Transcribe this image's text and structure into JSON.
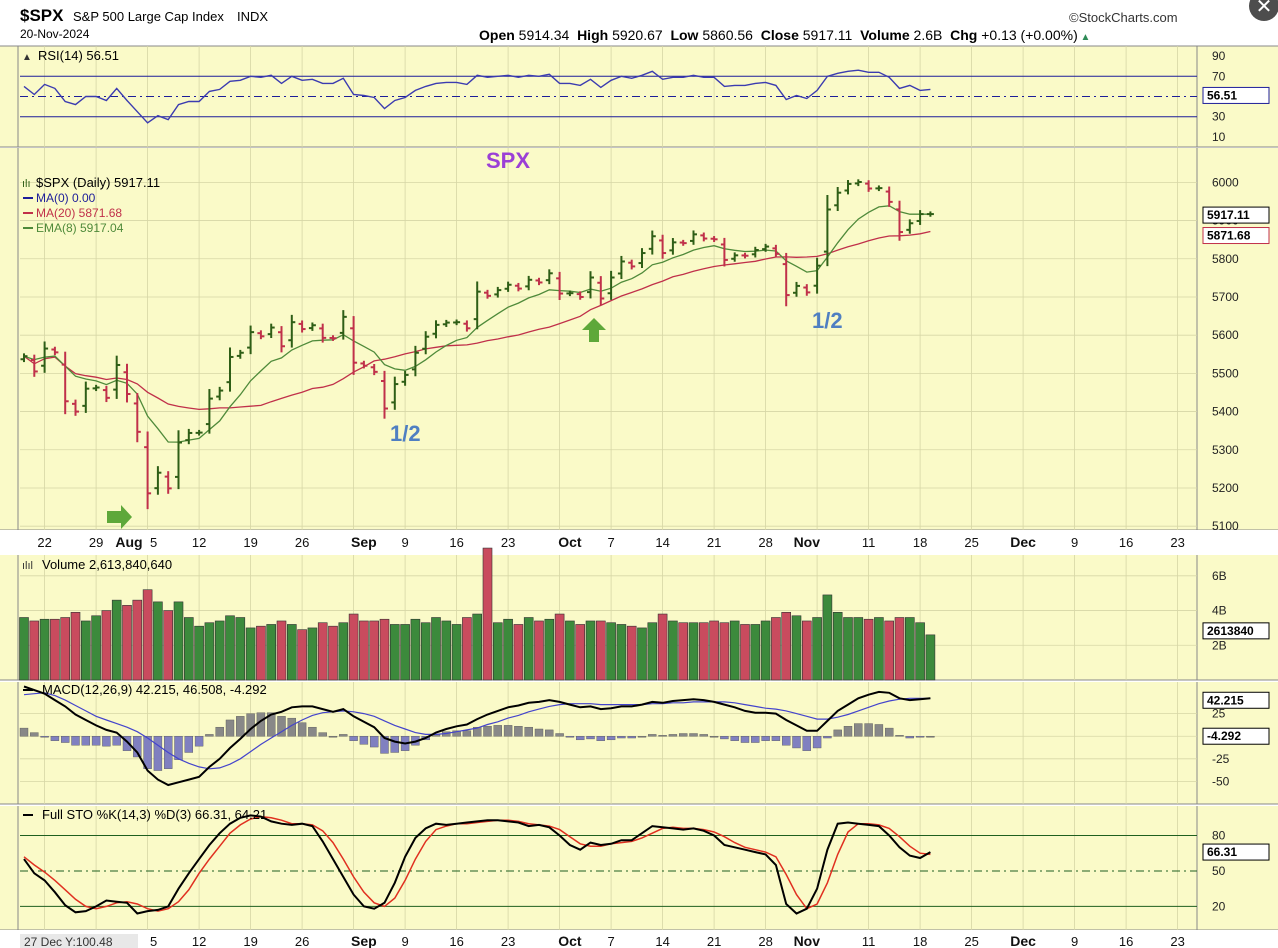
{
  "header": {
    "symbol": "$SPX",
    "name": "S&P 500 Large Cap Index",
    "exchange": "INDX",
    "date": "20-Nov-2024",
    "brand": "StockCharts.com",
    "ohlc_line": [
      {
        "label": "Open",
        "value": "5914.34"
      },
      {
        "label": "High",
        "value": "5920.67"
      },
      {
        "label": "Low",
        "value": "5860.56"
      },
      {
        "label": "Close",
        "value": "5917.11"
      },
      {
        "label": "Volume",
        "value": "2.6B"
      },
      {
        "label": "Chg",
        "value": "+0.13 (+0.00%)"
      }
    ],
    "close_icon": "close-icon"
  },
  "colors": {
    "panel_bg": "#fafac8",
    "grid": "#d6d6a6",
    "up": "#2e5e16",
    "down": "#c0304a",
    "vol_up": "#3c8a3c",
    "vol_down": "#c94b5e",
    "ma20": "#c0304a",
    "ema8": "#4f8a3a",
    "rsi": "#3b3bb0",
    "macd_signal": "#4444cc",
    "macd_hist": "#8080c0",
    "sto_k": "#000000",
    "sto_d": "#e03020",
    "annotation_purple": "#9b3fd6",
    "annotation_blue": "#4f7fc2",
    "arrow_green": "#5ea83a"
  },
  "chart_data": {
    "type": "candlestick",
    "x_axis_labels": [
      "22",
      "29",
      "Aug",
      "5",
      "12",
      "19",
      "26",
      "Sep",
      "9",
      "16",
      "23",
      "Oct",
      "7",
      "14",
      "21",
      "28",
      "Nov",
      "11",
      "18",
      "25",
      "Dec",
      "9",
      "16",
      "23"
    ],
    "bottom_axis_labels": [
      "5",
      "12",
      "19",
      "26",
      "Sep",
      "9",
      "16",
      "23",
      "Oct",
      "7",
      "14",
      "21",
      "28",
      "Nov",
      "11",
      "18",
      "25",
      "Dec",
      "9",
      "16",
      "23"
    ],
    "bottom_axis_prefix": "27 Dec Y:100.48",
    "dates": [
      "2024-07-18",
      "2024-07-19",
      "2024-07-22",
      "2024-07-23",
      "2024-07-24",
      "2024-07-25",
      "2024-07-26",
      "2024-07-29",
      "2024-07-30",
      "2024-07-31",
      "2024-08-01",
      "2024-08-02",
      "2024-08-05",
      "2024-08-06",
      "2024-08-07",
      "2024-08-08",
      "2024-08-09",
      "2024-08-12",
      "2024-08-13",
      "2024-08-14",
      "2024-08-15",
      "2024-08-16",
      "2024-08-19",
      "2024-08-20",
      "2024-08-21",
      "2024-08-22",
      "2024-08-23",
      "2024-08-26",
      "2024-08-27",
      "2024-08-28",
      "2024-08-29",
      "2024-08-30",
      "2024-09-03",
      "2024-09-04",
      "2024-09-05",
      "2024-09-06",
      "2024-09-09",
      "2024-09-10",
      "2024-09-11",
      "2024-09-12",
      "2024-09-13",
      "2024-09-16",
      "2024-09-17",
      "2024-09-18",
      "2024-09-19",
      "2024-09-20",
      "2024-09-23",
      "2024-09-24",
      "2024-09-25",
      "2024-09-26",
      "2024-09-27",
      "2024-09-30",
      "2024-10-01",
      "2024-10-02",
      "2024-10-03",
      "2024-10-04",
      "2024-10-07",
      "2024-10-08",
      "2024-10-09",
      "2024-10-10",
      "2024-10-11",
      "2024-10-14",
      "2024-10-15",
      "2024-10-16",
      "2024-10-17",
      "2024-10-18",
      "2024-10-21",
      "2024-10-22",
      "2024-10-23",
      "2024-10-24",
      "2024-10-25",
      "2024-10-28",
      "2024-10-29",
      "2024-10-30",
      "2024-10-31",
      "2024-11-01",
      "2024-11-04",
      "2024-11-05",
      "2024-11-06",
      "2024-11-07",
      "2024-11-08",
      "2024-11-11",
      "2024-11-12",
      "2024-11-13",
      "2024-11-14",
      "2024-11-15",
      "2024-11-18",
      "2024-11-19",
      "2024-11-20"
    ],
    "close": [
      5545,
      5505,
      5565,
      5555,
      5427,
      5400,
      5460,
      5463,
      5436,
      5522,
      5446,
      5347,
      5186,
      5240,
      5199,
      5319,
      5344,
      5345,
      5434,
      5455,
      5543,
      5554,
      5608,
      5597,
      5620,
      5571,
      5634,
      5616,
      5626,
      5593,
      5592,
      5648,
      5528,
      5520,
      5504,
      5408,
      5472,
      5496,
      5554,
      5596,
      5627,
      5633,
      5634,
      5618,
      5714,
      5703,
      5718,
      5732,
      5722,
      5745,
      5738,
      5762,
      5709,
      5710,
      5700,
      5751,
      5696,
      5751,
      5793,
      5780,
      5815,
      5859,
      5815,
      5843,
      5841,
      5864,
      5853,
      5851,
      5797,
      5809,
      5808,
      5823,
      5832,
      5813,
      5705,
      5729,
      5712,
      5782,
      5929,
      5973,
      5996,
      6001,
      5984,
      5985,
      5949,
      5870,
      5893,
      5917,
      5917
    ],
    "prices": {
      "ticks": [
        5100,
        5200,
        5300,
        5400,
        5500,
        5600,
        5700,
        5800,
        5900,
        6000
      ],
      "ylim": [
        5090,
        6090
      ],
      "legend": [
        "$SPX (Daily) 5917.11",
        "MA(0) 0.00",
        "MA(20) 5871.68",
        "EMA(8) 5917.04"
      ],
      "last_labels": [
        "5917.11",
        "5871.68"
      ]
    },
    "rsi": {
      "title": "RSI(14) 56.51",
      "ticks": [
        10,
        30,
        50,
        70,
        90
      ],
      "last_label": "56.51",
      "values": [
        60,
        52,
        62,
        58,
        45,
        42,
        50,
        50,
        46,
        58,
        46,
        35,
        24,
        31,
        27,
        42,
        45,
        45,
        55,
        57,
        65,
        66,
        70,
        69,
        71,
        63,
        70,
        66,
        67,
        63,
        63,
        68,
        52,
        51,
        49,
        38,
        46,
        49,
        56,
        60,
        63,
        64,
        64,
        62,
        71,
        69,
        70,
        71,
        69,
        71,
        70,
        72,
        63,
        63,
        61,
        67,
        59,
        66,
        70,
        68,
        71,
        75,
        67,
        69,
        69,
        71,
        69,
        69,
        60,
        61,
        61,
        63,
        64,
        61,
        47,
        51,
        48,
        56,
        70,
        73,
        75,
        76,
        74,
        74,
        69,
        58,
        61,
        56,
        57
      ]
    },
    "volume": {
      "title": "Volume 2,613,840,640",
      "ticks": [
        "2B",
        "4B",
        "6B"
      ],
      "last_label": "2613840",
      "values": [
        3.6,
        3.4,
        3.5,
        3.5,
        3.6,
        3.9,
        3.4,
        3.7,
        4.0,
        4.6,
        4.3,
        4.6,
        5.2,
        4.5,
        4.0,
        4.5,
        3.6,
        3.1,
        3.3,
        3.4,
        3.7,
        3.6,
        3.0,
        3.1,
        3.2,
        3.4,
        3.2,
        2.9,
        3.0,
        3.3,
        3.1,
        3.3,
        3.8,
        3.4,
        3.4,
        3.5,
        3.2,
        3.2,
        3.5,
        3.3,
        3.6,
        3.4,
        3.2,
        3.6,
        3.8,
        7.6,
        3.3,
        3.5,
        3.2,
        3.6,
        3.4,
        3.5,
        3.8,
        3.4,
        3.2,
        3.4,
        3.4,
        3.3,
        3.2,
        3.1,
        3.0,
        3.3,
        3.8,
        3.4,
        3.3,
        3.3,
        3.3,
        3.4,
        3.3,
        3.4,
        3.2,
        3.2,
        3.4,
        3.6,
        3.9,
        3.7,
        3.4,
        3.6,
        4.9,
        3.9,
        3.6,
        3.6,
        3.5,
        3.6,
        3.4,
        3.6,
        3.6,
        3.3,
        2.6
      ]
    },
    "macd": {
      "title": "MACD(12,26,9) 42.215, 46.508, -4.292",
      "ticks": [
        -50,
        -25,
        0,
        25
      ],
      "last_labels": [
        "42.215",
        "-4.292"
      ],
      "macd": [
        55,
        51,
        47,
        40,
        33,
        24,
        18,
        12,
        7,
        4,
        -6,
        -18,
        -38,
        -48,
        -54,
        -51,
        -48,
        -45,
        -34,
        -25,
        -13,
        -3,
        8,
        17,
        24,
        27,
        32,
        33,
        33,
        30,
        27,
        30,
        22,
        16,
        10,
        -2,
        -6,
        -8,
        -6,
        -2,
        4,
        8,
        11,
        13,
        19,
        24,
        28,
        32,
        34,
        37,
        38,
        40,
        38,
        35,
        32,
        33,
        30,
        31,
        33,
        33,
        35,
        38,
        37,
        39,
        40,
        41,
        40,
        38,
        35,
        32,
        28,
        26,
        26,
        25,
        18,
        12,
        6,
        6,
        17,
        28,
        35,
        42,
        46,
        49,
        48,
        42,
        40,
        41,
        42
      ],
      "signal": [
        46,
        47,
        48,
        45,
        40,
        34,
        28,
        22,
        18,
        14,
        10,
        5,
        -2,
        -10,
        -18,
        -25,
        -30,
        -34,
        -36,
        -35,
        -31,
        -25,
        -17,
        -9,
        -2,
        5,
        12,
        18,
        23,
        26,
        27,
        28,
        27,
        25,
        22,
        17,
        12,
        8,
        4,
        2,
        2,
        3,
        5,
        7,
        9,
        13,
        16,
        20,
        23,
        27,
        30,
        33,
        35,
        36,
        36,
        36,
        35,
        35,
        35,
        35,
        35,
        36,
        36,
        37,
        37,
        38,
        38,
        38,
        38,
        37,
        35,
        33,
        31,
        30,
        28,
        25,
        22,
        19,
        19,
        21,
        24,
        28,
        32,
        36,
        39,
        41,
        42,
        42,
        42
      ]
    },
    "sto": {
      "title": "Full STO %K(14,3) %D(3) 66.31, 64.21",
      "ticks": [
        20,
        50,
        80
      ],
      "last_label": "66.31",
      "k": [
        60,
        48,
        42,
        32,
        21,
        15,
        16,
        20,
        25,
        24,
        23,
        14,
        16,
        17,
        20,
        35,
        48,
        60,
        72,
        82,
        90,
        95,
        97,
        96,
        92,
        90,
        89,
        90,
        88,
        75,
        60,
        45,
        30,
        20,
        18,
        23,
        40,
        62,
        78,
        86,
        90,
        89,
        90,
        91,
        92,
        93,
        93,
        92,
        91,
        88,
        89,
        87,
        80,
        72,
        68,
        74,
        72,
        73,
        76,
        76,
        82,
        88,
        87,
        86,
        85,
        86,
        84,
        80,
        72,
        70,
        68,
        66,
        64,
        55,
        22,
        14,
        18,
        35,
        68,
        90,
        91,
        90,
        89,
        88,
        80,
        70,
        63,
        61,
        66
      ],
      "d": [
        62,
        55,
        49,
        42,
        34,
        26,
        20,
        18,
        20,
        23,
        24,
        22,
        18,
        16,
        18,
        24,
        34,
        48,
        60,
        71,
        82,
        89,
        94,
        96,
        95,
        93,
        90,
        90,
        89,
        84,
        74,
        60,
        45,
        32,
        23,
        20,
        27,
        42,
        60,
        75,
        85,
        88,
        90,
        90,
        91,
        92,
        93,
        93,
        92,
        90,
        89,
        88,
        85,
        79,
        73,
        71,
        71,
        73,
        74,
        75,
        78,
        82,
        86,
        87,
        86,
        86,
        85,
        83,
        79,
        74,
        70,
        68,
        66,
        62,
        47,
        30,
        18,
        22,
        40,
        64,
        83,
        90,
        90,
        89,
        86,
        79,
        71,
        65,
        64
      ]
    },
    "annotations": [
      "SPX",
      "1/2",
      "1/2"
    ]
  }
}
